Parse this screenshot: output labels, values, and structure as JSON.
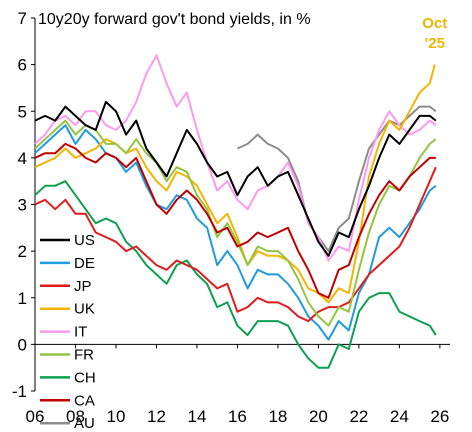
{
  "chart_data": {
    "type": "line",
    "title": "10y20y forward gov't bond yields, in %",
    "xlabel": "",
    "ylabel": "",
    "xlim": [
      2006,
      2026.5
    ],
    "ylim": [
      -1,
      7
    ],
    "x_ticks": [
      {
        "value": 2006,
        "label": "06"
      },
      {
        "value": 2008,
        "label": "08"
      },
      {
        "value": 2010,
        "label": "10"
      },
      {
        "value": 2012,
        "label": "12"
      },
      {
        "value": 2014,
        "label": "14"
      },
      {
        "value": 2016,
        "label": "16"
      },
      {
        "value": 2018,
        "label": "18"
      },
      {
        "value": 2020,
        "label": "20"
      },
      {
        "value": 2022,
        "label": "22"
      },
      {
        "value": 2024,
        "label": "24"
      },
      {
        "value": 2026,
        "label": "26"
      }
    ],
    "y_ticks": [
      -1,
      0,
      1,
      2,
      3,
      4,
      5,
      6,
      7
    ],
    "grid": false,
    "legend_position": "center-left",
    "annotation": {
      "text_line1": "Oct",
      "text_line2": "'25",
      "x": 2025.75,
      "y": 6.1,
      "color": "#f0b400"
    },
    "series": [
      {
        "name": "US",
        "color": "#000000",
        "x": [
          2006,
          2006.5,
          2007,
          2007.5,
          2008,
          2008.5,
          2009,
          2009.5,
          2010,
          2010.5,
          2011,
          2011.5,
          2012,
          2012.5,
          2013,
          2013.5,
          2014,
          2014.5,
          2015,
          2015.5,
          2016,
          2016.5,
          2017,
          2017.5,
          2018,
          2018.5,
          2019,
          2019.5,
          2020,
          2020.5,
          2021,
          2021.5,
          2022,
          2022.5,
          2023,
          2023.5,
          2024,
          2024.5,
          2025,
          2025.5,
          2025.8
        ],
        "y": [
          4.8,
          4.9,
          4.8,
          5.1,
          4.9,
          4.7,
          4.6,
          5.2,
          5.0,
          4.5,
          4.8,
          4.2,
          3.9,
          3.6,
          4.1,
          4.6,
          4.3,
          3.9,
          3.6,
          3.7,
          3.2,
          3.6,
          3.8,
          3.4,
          3.6,
          3.7,
          3.2,
          2.7,
          2.2,
          1.9,
          2.4,
          2.3,
          2.9,
          3.4,
          4.0,
          4.5,
          4.3,
          4.6,
          4.9,
          4.9,
          4.8
        ]
      },
      {
        "name": "DE",
        "color": "#1f9bde",
        "x": [
          2006,
          2006.5,
          2007,
          2007.5,
          2008,
          2008.5,
          2009,
          2009.5,
          2010,
          2010.5,
          2011,
          2011.5,
          2012,
          2012.5,
          2013,
          2013.5,
          2014,
          2014.5,
          2015,
          2015.5,
          2016,
          2016.5,
          2017,
          2017.5,
          2018,
          2018.5,
          2019,
          2019.5,
          2020,
          2020.5,
          2021,
          2021.5,
          2022,
          2022.5,
          2023,
          2023.5,
          2024,
          2024.5,
          2025,
          2025.5,
          2025.8
        ],
        "y": [
          4.1,
          4.3,
          4.5,
          4.7,
          4.3,
          4.6,
          4.4,
          4.1,
          4.0,
          3.7,
          3.9,
          3.4,
          3.0,
          2.9,
          3.2,
          3.1,
          2.7,
          2.5,
          1.7,
          2.0,
          1.7,
          1.2,
          1.6,
          1.5,
          1.5,
          1.3,
          1.0,
          0.6,
          0.4,
          0.1,
          0.5,
          0.3,
          1.1,
          1.5,
          2.3,
          2.5,
          2.3,
          2.6,
          2.9,
          3.3,
          3.4
        ]
      },
      {
        "name": "JP",
        "color": "#e01b1b",
        "x": [
          2006,
          2006.5,
          2007,
          2007.5,
          2008,
          2008.5,
          2009,
          2009.5,
          2010,
          2010.5,
          2011,
          2011.5,
          2012,
          2012.5,
          2013,
          2013.5,
          2014,
          2014.5,
          2015,
          2015.5,
          2016,
          2016.5,
          2017,
          2017.5,
          2018,
          2018.5,
          2019,
          2019.5,
          2020,
          2020.5,
          2021,
          2021.5,
          2022,
          2022.5,
          2023,
          2023.5,
          2024,
          2024.5,
          2025,
          2025.5,
          2025.8
        ],
        "y": [
          3.0,
          3.1,
          2.9,
          3.1,
          2.8,
          2.8,
          2.4,
          2.3,
          2.2,
          2.0,
          2.1,
          1.9,
          1.7,
          1.6,
          1.8,
          1.7,
          1.6,
          1.4,
          1.2,
          1.3,
          0.7,
          0.8,
          1.0,
          0.9,
          0.9,
          0.8,
          0.6,
          0.5,
          0.7,
          0.8,
          0.8,
          0.9,
          1.2,
          1.5,
          1.7,
          1.9,
          2.1,
          2.5,
          3.0,
          3.5,
          3.8
        ]
      },
      {
        "name": "UK",
        "color": "#f5b400",
        "x": [
          2006,
          2006.5,
          2007,
          2007.5,
          2008,
          2008.5,
          2009,
          2009.5,
          2010,
          2010.5,
          2011,
          2011.5,
          2012,
          2012.5,
          2013,
          2013.5,
          2014,
          2014.5,
          2015,
          2015.5,
          2016,
          2016.5,
          2017,
          2017.5,
          2018,
          2018.5,
          2019,
          2019.5,
          2020,
          2020.5,
          2021,
          2021.5,
          2022,
          2022.5,
          2023,
          2023.5,
          2024,
          2024.5,
          2025,
          2025.5,
          2025.75
        ],
        "y": [
          3.8,
          3.9,
          4.0,
          4.2,
          4.0,
          4.1,
          4.2,
          4.4,
          4.3,
          4.1,
          4.2,
          3.8,
          3.5,
          3.3,
          3.7,
          3.6,
          3.4,
          3.0,
          2.6,
          2.8,
          2.3,
          1.7,
          2.0,
          1.9,
          1.9,
          1.8,
          1.6,
          1.2,
          1.1,
          0.9,
          1.2,
          1.1,
          2.2,
          3.6,
          4.3,
          4.8,
          4.6,
          5.0,
          5.4,
          5.6,
          6.0
        ]
      },
      {
        "name": "IT",
        "color": "#ff99ee",
        "x": [
          2006,
          2006.5,
          2007,
          2007.5,
          2008,
          2008.5,
          2009,
          2009.5,
          2010,
          2010.5,
          2011,
          2011.5,
          2012,
          2012.5,
          2013,
          2013.5,
          2014,
          2014.5,
          2015,
          2015.5,
          2016,
          2016.5,
          2017,
          2017.5,
          2018,
          2018.5,
          2019,
          2019.5,
          2020,
          2020.5,
          2021,
          2021.5,
          2022,
          2022.5,
          2023,
          2023.5,
          2024,
          2024.5,
          2025,
          2025.5,
          2025.8
        ],
        "y": [
          4.3,
          4.5,
          4.8,
          4.9,
          4.7,
          5.0,
          5.0,
          4.7,
          4.6,
          4.8,
          5.2,
          5.8,
          6.2,
          5.6,
          5.1,
          5.4,
          4.6,
          3.9,
          3.3,
          3.5,
          3.1,
          2.9,
          3.3,
          3.4,
          3.6,
          3.9,
          3.4,
          2.6,
          2.3,
          1.8,
          2.1,
          2.0,
          3.1,
          4.0,
          4.6,
          5.0,
          4.7,
          4.5,
          4.6,
          4.8,
          4.7
        ]
      },
      {
        "name": "FR",
        "color": "#92c540",
        "x": [
          2006,
          2006.5,
          2007,
          2007.5,
          2008,
          2008.5,
          2009,
          2009.5,
          2010,
          2010.5,
          2011,
          2011.5,
          2012,
          2012.5,
          2013,
          2013.5,
          2014,
          2014.5,
          2015,
          2015.5,
          2016,
          2016.5,
          2017,
          2017.5,
          2018,
          2018.5,
          2019,
          2019.5,
          2020,
          2020.5,
          2021,
          2021.5,
          2022,
          2022.5,
          2023,
          2023.5,
          2024,
          2024.5,
          2025,
          2025.5,
          2025.8
        ],
        "y": [
          4.2,
          4.4,
          4.6,
          4.8,
          4.5,
          4.7,
          4.6,
          4.3,
          4.3,
          4.1,
          4.4,
          4.1,
          3.9,
          3.5,
          3.8,
          3.7,
          3.2,
          2.9,
          2.3,
          2.6,
          2.2,
          1.7,
          2.1,
          2.0,
          2.0,
          1.8,
          1.4,
          0.9,
          0.6,
          0.4,
          0.8,
          0.7,
          1.6,
          2.4,
          3.0,
          3.4,
          3.3,
          3.6,
          4.0,
          4.3,
          4.4
        ]
      },
      {
        "name": "CH",
        "color": "#0ca050",
        "x": [
          2006,
          2006.5,
          2007,
          2007.5,
          2008,
          2008.5,
          2009,
          2009.5,
          2010,
          2010.5,
          2011,
          2011.5,
          2012,
          2012.5,
          2013,
          2013.5,
          2014,
          2014.5,
          2015,
          2015.5,
          2016,
          2016.5,
          2017,
          2017.5,
          2018,
          2018.5,
          2019,
          2019.5,
          2020,
          2020.5,
          2021,
          2021.5,
          2022,
          2022.5,
          2023,
          2023.5,
          2024,
          2024.5,
          2025,
          2025.5,
          2025.8
        ],
        "y": [
          3.2,
          3.4,
          3.4,
          3.5,
          3.2,
          2.9,
          2.6,
          2.7,
          2.6,
          2.2,
          2.0,
          1.7,
          1.5,
          1.3,
          1.7,
          1.8,
          1.5,
          1.3,
          0.8,
          0.9,
          0.4,
          0.2,
          0.5,
          0.5,
          0.5,
          0.4,
          0.0,
          -0.3,
          -0.5,
          -0.5,
          0.0,
          -0.1,
          0.7,
          1.0,
          1.1,
          1.1,
          0.7,
          0.6,
          0.5,
          0.4,
          0.2
        ]
      },
      {
        "name": "CA",
        "color": "#c00000",
        "x": [
          2006,
          2006.5,
          2007,
          2007.5,
          2008,
          2008.5,
          2009,
          2009.5,
          2010,
          2010.5,
          2011,
          2011.5,
          2012,
          2012.5,
          2013,
          2013.5,
          2014,
          2014.5,
          2015,
          2015.5,
          2016,
          2016.5,
          2017,
          2017.5,
          2018,
          2018.5,
          2019,
          2019.5,
          2020,
          2020.5,
          2021,
          2021.5,
          2022,
          2022.5,
          2023,
          2023.5,
          2024,
          2024.5,
          2025,
          2025.5,
          2025.8
        ],
        "y": [
          4.0,
          4.1,
          4.1,
          4.3,
          4.2,
          4.0,
          3.9,
          4.1,
          4.0,
          3.8,
          4.0,
          3.5,
          3.0,
          2.8,
          3.1,
          3.3,
          3.1,
          2.8,
          2.4,
          2.5,
          2.1,
          2.2,
          2.4,
          2.3,
          2.4,
          2.5,
          2.0,
          1.6,
          1.1,
          1.0,
          1.6,
          1.7,
          2.3,
          2.8,
          3.2,
          3.5,
          3.3,
          3.6,
          3.8,
          4.0,
          4.0
        ]
      },
      {
        "name": "AU",
        "color": "#8c8c8c",
        "x": [
          2016.0,
          2016.5,
          2017,
          2017.5,
          2018,
          2018.5,
          2019,
          2019.5,
          2020,
          2020.5,
          2021,
          2021.5,
          2022,
          2022.5,
          2023,
          2023.5,
          2024,
          2024.5,
          2025,
          2025.5,
          2025.8
        ],
        "y": [
          4.2,
          4.3,
          4.5,
          4.3,
          4.2,
          4.0,
          3.5,
          2.6,
          2.3,
          2.0,
          2.5,
          2.7,
          3.5,
          4.2,
          4.5,
          4.8,
          4.7,
          4.9,
          5.1,
          5.1,
          5.0
        ]
      }
    ]
  }
}
